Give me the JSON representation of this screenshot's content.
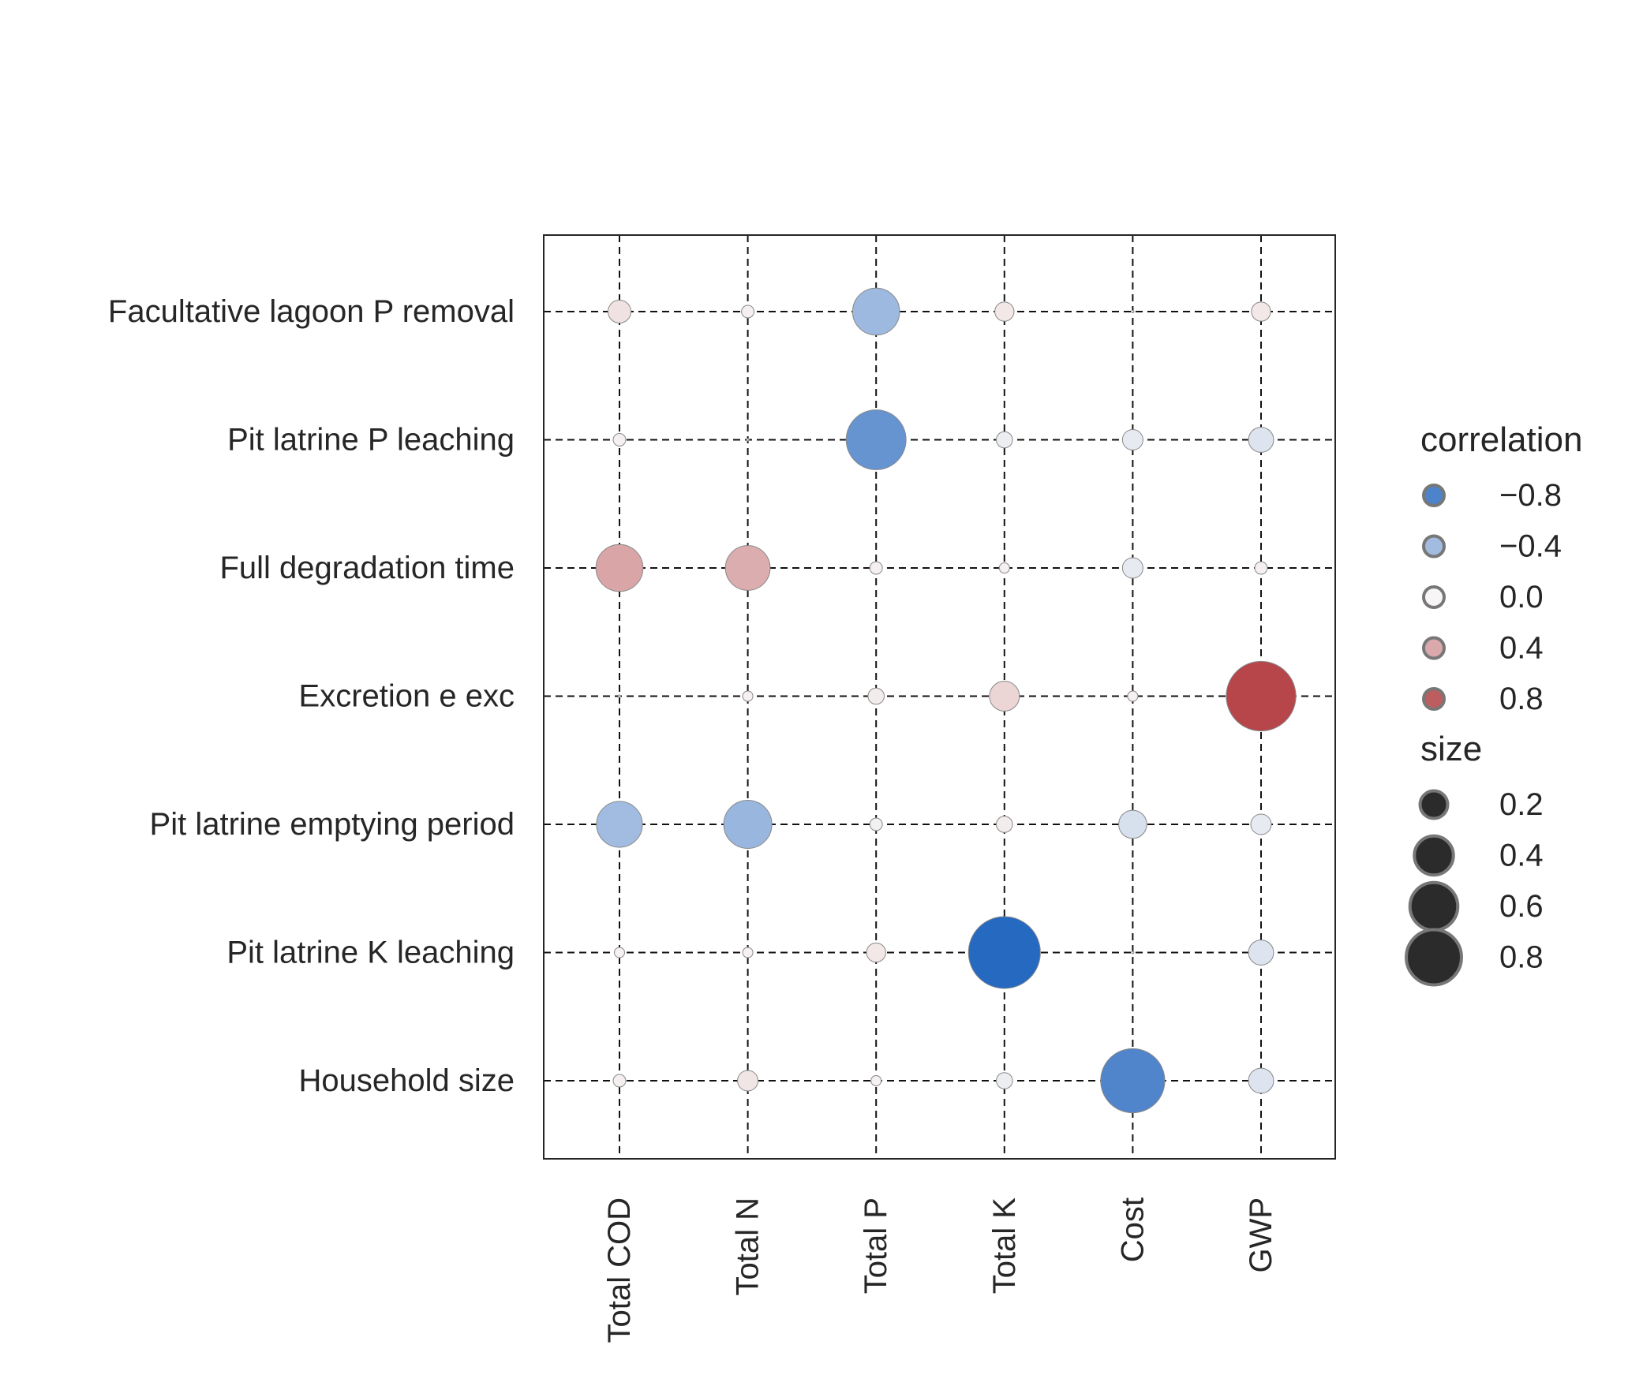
{
  "chart_data": {
    "type": "bubble-correlation-matrix",
    "title": "",
    "xlabel": "",
    "ylabel": "",
    "x_categories": [
      "Total COD",
      "Total N",
      "Total P",
      "Total K",
      "Cost",
      "GWP"
    ],
    "y_categories": [
      "Facultative lagoon P removal",
      "Pit latrine P leaching",
      "Full degradation time",
      "Excretion e exc",
      "Pit latrine emptying period",
      "Pit latrine K leaching",
      "Household size"
    ],
    "grid": true,
    "grid_style": "dashed",
    "color_scale": {
      "low": "#2166c0",
      "mid": "#f7f5f5",
      "high": "#b0373b",
      "domain": [
        -1,
        1
      ]
    },
    "points": [
      {
        "x": "Total COD",
        "y": "Facultative lagoon P removal",
        "correlation": 0.1
      },
      {
        "x": "Total N",
        "y": "Facultative lagoon P removal",
        "correlation": 0.03
      },
      {
        "x": "Total P",
        "y": "Facultative lagoon P removal",
        "correlation": -0.42
      },
      {
        "x": "Total K",
        "y": "Facultative lagoon P removal",
        "correlation": 0.07
      },
      {
        "x": "Cost",
        "y": "Facultative lagoon P removal",
        "correlation": 0.0
      },
      {
        "x": "GWP",
        "y": "Facultative lagoon P removal",
        "correlation": 0.07
      },
      {
        "x": "Total COD",
        "y": "Pit latrine P leaching",
        "correlation": 0.03
      },
      {
        "x": "Total N",
        "y": "Pit latrine P leaching",
        "correlation": 0.0
      },
      {
        "x": "Total P",
        "y": "Pit latrine P leaching",
        "correlation": -0.68
      },
      {
        "x": "Total K",
        "y": "Pit latrine P leaching",
        "correlation": -0.05
      },
      {
        "x": "Cost",
        "y": "Pit latrine P leaching",
        "correlation": -0.08
      },
      {
        "x": "GWP",
        "y": "Pit latrine P leaching",
        "correlation": -0.12
      },
      {
        "x": "Total COD",
        "y": "Full degradation time",
        "correlation": 0.42
      },
      {
        "x": "Total N",
        "y": "Full degradation time",
        "correlation": 0.38
      },
      {
        "x": "Total P",
        "y": "Full degradation time",
        "correlation": 0.03
      },
      {
        "x": "Total K",
        "y": "Full degradation time",
        "correlation": 0.02
      },
      {
        "x": "Cost",
        "y": "Full degradation time",
        "correlation": -0.08
      },
      {
        "x": "GWP",
        "y": "Full degradation time",
        "correlation": 0.03
      },
      {
        "x": "Total COD",
        "y": "Excretion e exc",
        "correlation": 0.0
      },
      {
        "x": "Total N",
        "y": "Excretion e exc",
        "correlation": 0.02
      },
      {
        "x": "Total P",
        "y": "Excretion e exc",
        "correlation": 0.05
      },
      {
        "x": "Total K",
        "y": "Excretion e exc",
        "correlation": 0.17
      },
      {
        "x": "Cost",
        "y": "Excretion e exc",
        "correlation": 0.02
      },
      {
        "x": "GWP",
        "y": "Excretion e exc",
        "correlation": 0.92
      },
      {
        "x": "Total COD",
        "y": "Pit latrine emptying period",
        "correlation": -0.4
      },
      {
        "x": "Total N",
        "y": "Pit latrine emptying period",
        "correlation": -0.44
      },
      {
        "x": "Total P",
        "y": "Pit latrine emptying period",
        "correlation": -0.03
      },
      {
        "x": "Total K",
        "y": "Pit latrine emptying period",
        "correlation": 0.05
      },
      {
        "x": "Cost",
        "y": "Pit latrine emptying period",
        "correlation": -0.15
      },
      {
        "x": "GWP",
        "y": "Pit latrine emptying period",
        "correlation": -0.08
      },
      {
        "x": "Total COD",
        "y": "Pit latrine K leaching",
        "correlation": 0.02
      },
      {
        "x": "Total N",
        "y": "Pit latrine K leaching",
        "correlation": 0.02
      },
      {
        "x": "Total P",
        "y": "Pit latrine K leaching",
        "correlation": 0.07
      },
      {
        "x": "Total K",
        "y": "Pit latrine K leaching",
        "correlation": -0.98
      },
      {
        "x": "Cost",
        "y": "Pit latrine K leaching",
        "correlation": 0.0
      },
      {
        "x": "GWP",
        "y": "Pit latrine K leaching",
        "correlation": -0.12
      },
      {
        "x": "Total COD",
        "y": "Household size",
        "correlation": 0.03
      },
      {
        "x": "Total N",
        "y": "Household size",
        "correlation": 0.08
      },
      {
        "x": "Total P",
        "y": "Household size",
        "correlation": 0.02
      },
      {
        "x": "Total K",
        "y": "Household size",
        "correlation": -0.05
      },
      {
        "x": "Cost",
        "y": "Household size",
        "correlation": -0.78
      },
      {
        "x": "GWP",
        "y": "Household size",
        "correlation": -0.12
      }
    ],
    "legend": {
      "placement": "right",
      "color_title": "correlation",
      "color_entries": [
        {
          "label": "−0.8",
          "value": -0.8
        },
        {
          "label": "−0.4",
          "value": -0.4
        },
        {
          "label": "0.0",
          "value": 0.0
        },
        {
          "label": "0.4",
          "value": 0.4
        },
        {
          "label": "0.8",
          "value": 0.8
        }
      ],
      "size_title": "size",
      "size_entries": [
        {
          "label": "0.2",
          "value": 0.2
        },
        {
          "label": "0.4",
          "value": 0.4
        },
        {
          "label": "0.6",
          "value": 0.6
        },
        {
          "label": "0.8",
          "value": 0.8
        }
      ],
      "size_swatch_color": "#2b2b2b"
    }
  }
}
